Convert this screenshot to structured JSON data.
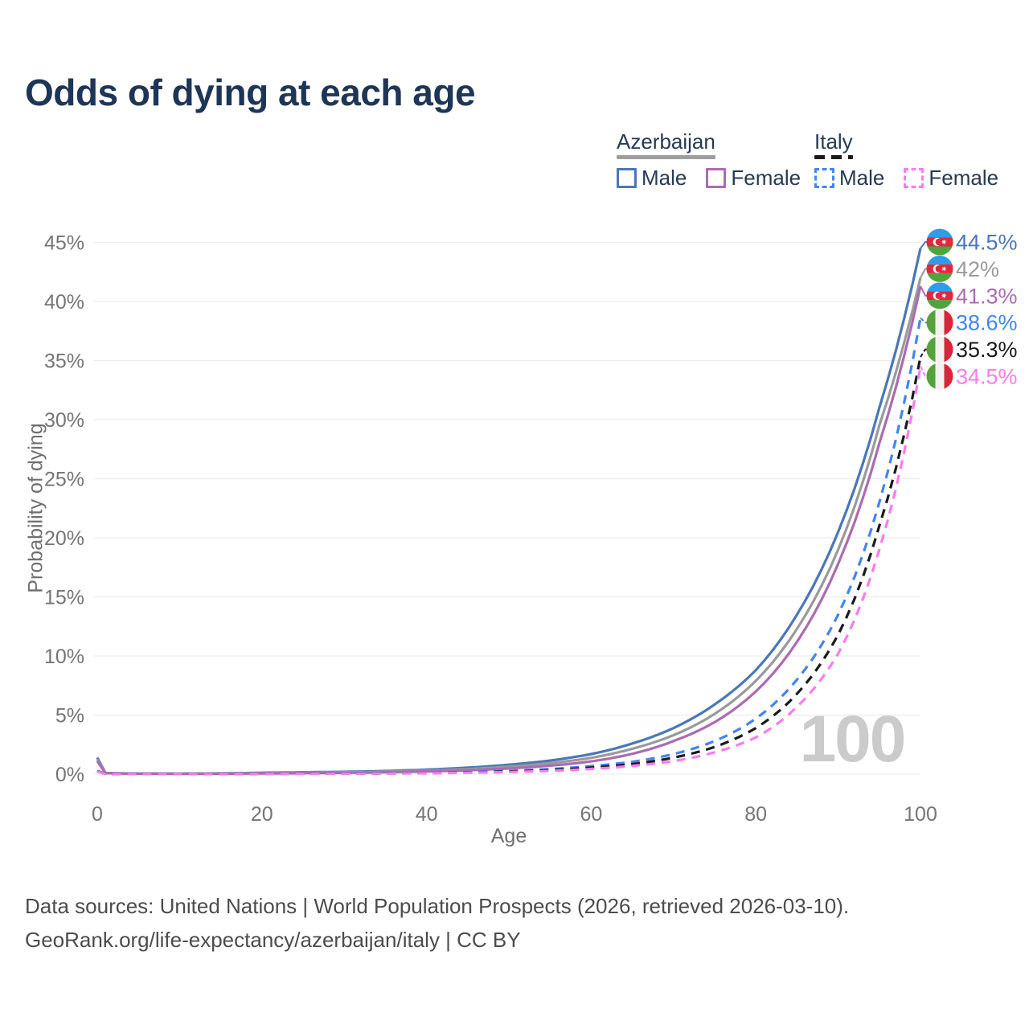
{
  "title": "Odds of dying at each age",
  "watermark": "100",
  "legend": {
    "groups": [
      {
        "name": "Azerbaijan",
        "underline_color": "#9e9e9e",
        "underline_style": "solid",
        "items": [
          {
            "label": "Male",
            "color": "#4a77b8",
            "dashed": false
          },
          {
            "label": "Female",
            "color": "#aa6cb2",
            "dashed": false
          }
        ]
      },
      {
        "name": "Italy",
        "underline_color": "#1a1a1a",
        "underline_style": "dashed",
        "items": [
          {
            "label": "Male",
            "color": "#4285f4",
            "dashed": true
          },
          {
            "label": "Female",
            "color": "#fb7bf2",
            "dashed": true
          }
        ]
      }
    ]
  },
  "chart_data": {
    "type": "line",
    "title": "Odds of dying at each age",
    "xlabel": "Age",
    "ylabel": "Probability of dying",
    "xlim": [
      0,
      100
    ],
    "ylim": [
      0,
      45
    ],
    "xticks": [
      0,
      20,
      40,
      60,
      80,
      100
    ],
    "yticks": [
      0,
      5,
      10,
      15,
      20,
      25,
      30,
      35,
      40,
      45
    ],
    "ytick_suffix": "%",
    "grid": "horizontal-only",
    "legend_position": "top-right",
    "x": [
      0,
      1,
      5,
      10,
      15,
      20,
      25,
      30,
      35,
      40,
      45,
      50,
      55,
      60,
      65,
      70,
      75,
      80,
      85,
      90,
      95,
      100
    ],
    "series": [
      {
        "name": "Azerbaijan Male",
        "country": "Azerbaijan",
        "sex": "Male",
        "flag": "az",
        "color": "#4a77b8",
        "dashed": false,
        "end_label": "44.5%",
        "values": [
          1.4,
          0.1,
          0.05,
          0.04,
          0.07,
          0.12,
          0.16,
          0.2,
          0.27,
          0.38,
          0.55,
          0.8,
          1.15,
          1.7,
          2.6,
          3.9,
          5.9,
          8.8,
          13.5,
          20.5,
          31.0,
          44.5
        ]
      },
      {
        "name": "Azerbaijan Both sexes",
        "country": "Azerbaijan",
        "sex": "Both",
        "flag": "az",
        "color": "#9a9a9a",
        "dashed": false,
        "end_label": "42%",
        "values": [
          1.25,
          0.09,
          0.045,
          0.035,
          0.055,
          0.09,
          0.12,
          0.155,
          0.21,
          0.3,
          0.43,
          0.63,
          0.93,
          1.38,
          2.15,
          3.3,
          5.1,
          7.9,
          12.3,
          19.0,
          29.5,
          42.0
        ]
      },
      {
        "name": "Azerbaijan Female",
        "country": "Azerbaijan",
        "sex": "Female",
        "flag": "az",
        "color": "#aa6cb2",
        "dashed": false,
        "end_label": "41.3%",
        "values": [
          1.1,
          0.08,
          0.04,
          0.03,
          0.04,
          0.06,
          0.08,
          0.11,
          0.16,
          0.23,
          0.33,
          0.48,
          0.72,
          1.08,
          1.72,
          2.8,
          4.4,
          7.0,
          11.2,
          17.8,
          28.0,
          41.3
        ]
      },
      {
        "name": "Italy Male",
        "country": "Italy",
        "sex": "Male",
        "flag": "it",
        "color": "#4285f4",
        "dashed": true,
        "end_label": "38.6%",
        "values": [
          0.28,
          0.02,
          0.01,
          0.012,
          0.025,
          0.04,
          0.05,
          0.06,
          0.08,
          0.11,
          0.17,
          0.27,
          0.43,
          0.68,
          1.05,
          1.7,
          2.8,
          4.7,
          8.0,
          13.5,
          23.0,
          38.6
        ]
      },
      {
        "name": "Italy Both sexes",
        "country": "Italy",
        "sex": "Both",
        "flag": "it",
        "color": "#1a1a1a",
        "dashed": true,
        "end_label": "35.3%",
        "values": [
          0.26,
          0.018,
          0.009,
          0.01,
          0.02,
          0.03,
          0.04,
          0.05,
          0.065,
          0.09,
          0.14,
          0.22,
          0.35,
          0.55,
          0.85,
          1.4,
          2.3,
          3.9,
          6.8,
          11.8,
          21.0,
          35.3
        ]
      },
      {
        "name": "Italy Female",
        "country": "Italy",
        "sex": "Female",
        "flag": "it",
        "color": "#fb7bf2",
        "dashed": true,
        "end_label": "34.5%",
        "values": [
          0.24,
          0.016,
          0.008,
          0.009,
          0.015,
          0.022,
          0.03,
          0.04,
          0.055,
          0.08,
          0.12,
          0.18,
          0.28,
          0.44,
          0.7,
          1.1,
          1.85,
          3.1,
          5.7,
          10.2,
          19.0,
          34.5
        ]
      }
    ],
    "flag_colors": {
      "az": {
        "top": "#2f9ceb",
        "middle": "#e4263c",
        "bottom": "#4fa43c",
        "emblem": "#ffffff"
      },
      "it": {
        "left": "#55a23c",
        "middle": "#f2f2ef",
        "right": "#d7263b"
      }
    }
  },
  "footer": {
    "line1": "Data sources: United Nations | World Population Prospects (2026, retrieved 2026-03-10).",
    "line2": "GeoRank.org/life-expectancy/azerbaijan/italy | CC BY"
  }
}
